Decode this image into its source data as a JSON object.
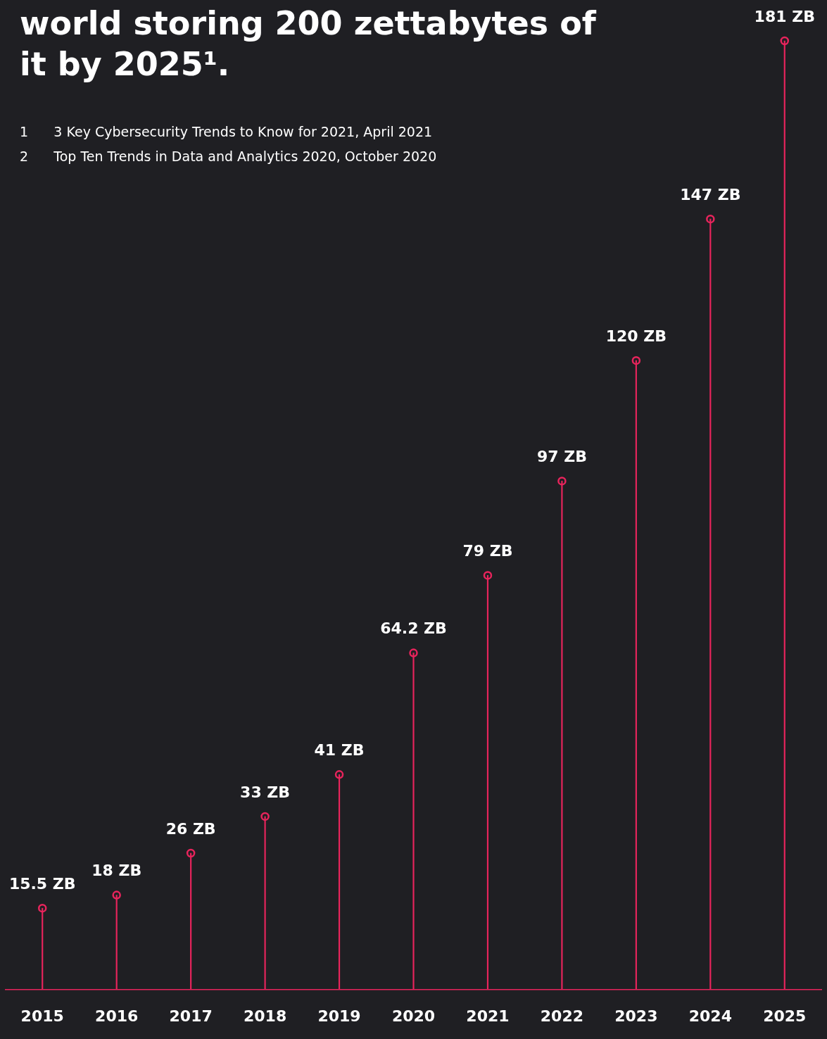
{
  "chart_data": {
    "type": "lollipop",
    "title": "world storing 200 zettabytes of it by 2025¹.",
    "annotations": [
      "1      3 Key Cybersecurity Trends to Know for 2021, April 2021",
      "2      Top Ten Trends in Data and Analytics 2020, October 2020"
    ],
    "categories": [
      "2015",
      "2016",
      "2017",
      "2018",
      "2019",
      "2020",
      "2021",
      "2022",
      "2023",
      "2024",
      "2025"
    ],
    "values": [
      15.5,
      18,
      26,
      33,
      41,
      64.2,
      79,
      97,
      120,
      147,
      181
    ],
    "value_labels": [
      "15.5 ZB",
      "18 ZB",
      "26 ZB",
      "33 ZB",
      "41 ZB",
      "64.2 ZB",
      "79 ZB",
      "97 ZB",
      "120 ZB",
      "147 ZB",
      "181 ZB"
    ],
    "color": "#e8245c"
  }
}
